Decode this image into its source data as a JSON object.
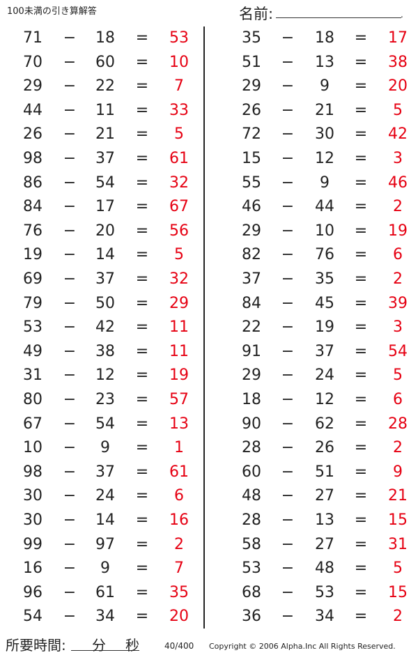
{
  "title": "100未満の引き算解答",
  "name_label": "名前:",
  "name_dot": ".",
  "footer": {
    "time_label": "所要時間:",
    "minutes_label": "分",
    "seconds_label": "秒",
    "page": "40/400",
    "copyright": "Copyright © 2006 Alpha.Inc All Rights Reserved."
  },
  "operator": "−",
  "equals": "=",
  "answer_color": "#e60012",
  "left": [
    [
      71,
      18,
      53
    ],
    [
      70,
      60,
      10
    ],
    [
      29,
      22,
      7
    ],
    [
      44,
      11,
      33
    ],
    [
      26,
      21,
      5
    ],
    [
      98,
      37,
      61
    ],
    [
      86,
      54,
      32
    ],
    [
      84,
      17,
      67
    ],
    [
      76,
      20,
      56
    ],
    [
      19,
      14,
      5
    ],
    [
      69,
      37,
      32
    ],
    [
      79,
      50,
      29
    ],
    [
      53,
      42,
      11
    ],
    [
      49,
      38,
      11
    ],
    [
      31,
      12,
      19
    ],
    [
      80,
      23,
      57
    ],
    [
      67,
      54,
      13
    ],
    [
      10,
      9,
      1
    ],
    [
      98,
      37,
      61
    ],
    [
      30,
      24,
      6
    ],
    [
      30,
      14,
      16
    ],
    [
      99,
      97,
      2
    ],
    [
      16,
      9,
      7
    ],
    [
      96,
      61,
      35
    ],
    [
      54,
      34,
      20
    ]
  ],
  "right": [
    [
      35,
      18,
      17
    ],
    [
      51,
      13,
      38
    ],
    [
      29,
      9,
      20
    ],
    [
      26,
      21,
      5
    ],
    [
      72,
      30,
      42
    ],
    [
      15,
      12,
      3
    ],
    [
      55,
      9,
      46
    ],
    [
      46,
      44,
      2
    ],
    [
      29,
      10,
      19
    ],
    [
      82,
      76,
      6
    ],
    [
      37,
      35,
      2
    ],
    [
      84,
      45,
      39
    ],
    [
      22,
      19,
      3
    ],
    [
      91,
      37,
      54
    ],
    [
      29,
      24,
      5
    ],
    [
      18,
      12,
      6
    ],
    [
      90,
      62,
      28
    ],
    [
      28,
      26,
      2
    ],
    [
      60,
      51,
      9
    ],
    [
      48,
      27,
      21
    ],
    [
      28,
      13,
      15
    ],
    [
      58,
      27,
      31
    ],
    [
      53,
      48,
      5
    ],
    [
      68,
      53,
      15
    ],
    [
      36,
      34,
      2
    ]
  ]
}
